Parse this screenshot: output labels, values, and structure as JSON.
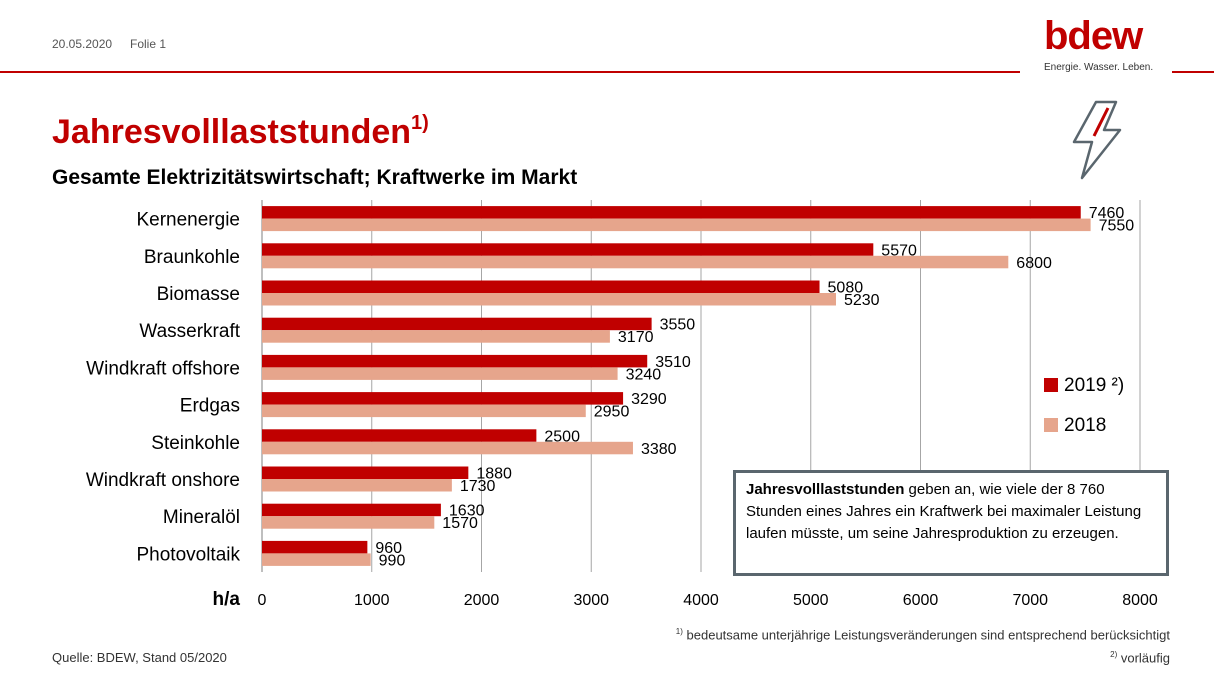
{
  "header": {
    "date": "20.05.2020",
    "slide": "Folie 1"
  },
  "logo": {
    "word": "bdew",
    "tagline": "Energie. Wasser. Leben."
  },
  "title": {
    "main": "Jahresvolllaststunden",
    "sup": "1)"
  },
  "subtitle": "Gesamte Elektrizitätswirtschaft; Kraftwerke im Markt",
  "colors": {
    "accent": "#c00000",
    "series2019": "#c00000",
    "series2018": "#e6a58c",
    "grid": "#a6a6a6"
  },
  "chart_data": {
    "type": "bar",
    "orientation": "horizontal",
    "categories": [
      "Kernenergie",
      "Braunkohle",
      "Biomasse",
      "Wasserkraft",
      "Windkraft offshore",
      "Erdgas",
      "Steinkohle",
      "Windkraft onshore",
      "Mineralöl",
      "Photovoltaik"
    ],
    "series": [
      {
        "name": "2019 ²)",
        "values": [
          7460,
          5570,
          5080,
          3550,
          3510,
          3290,
          2500,
          1880,
          1630,
          960
        ]
      },
      {
        "name": "2018",
        "values": [
          7550,
          6800,
          5230,
          3170,
          3240,
          2950,
          3380,
          1730,
          1570,
          990
        ]
      }
    ],
    "xlabel": "h/a",
    "xlim": [
      0,
      8000
    ],
    "xticks": [
      "0",
      "1000",
      "2000",
      "3000",
      "4000",
      "5000",
      "6000",
      "7000",
      "8000"
    ],
    "grid": true,
    "legend_position": "right"
  },
  "infobox": {
    "bold": "Jahresvolllaststunden",
    "text": " geben an, wie viele der 8 760 Stunden eines Jahres ein Kraftwerk bei maximaler Leistung laufen müsste, um seine Jahresproduktion zu erzeugen."
  },
  "footnotes": {
    "f1_mark": "1)",
    "f1_text": " bedeutsame unterjährige Leistungsveränderungen sind entsprechend berücksichtigt",
    "f2_mark": "2)",
    "f2_text": " vorläufig"
  },
  "source": "Quelle: BDEW, Stand 05/2020"
}
